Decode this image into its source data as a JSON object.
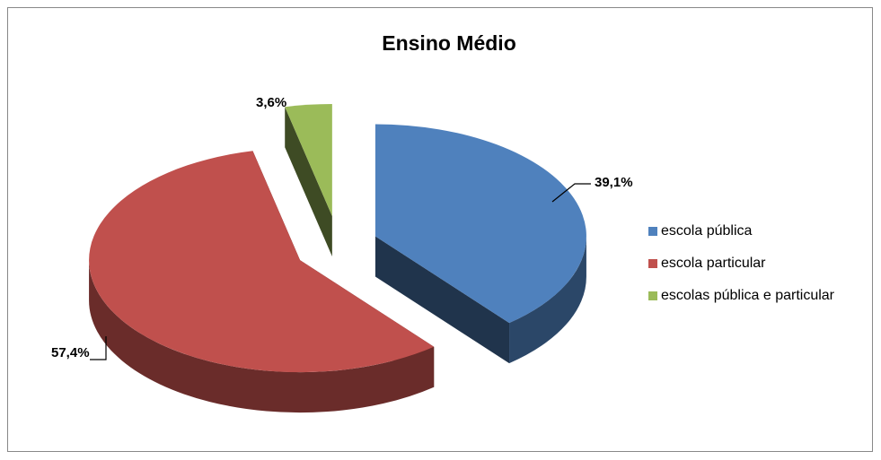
{
  "chart_data": {
    "type": "pie",
    "title": "Ensino Médio",
    "categories": [
      "escola pública",
      "escola particular",
      "escolas pública e particular"
    ],
    "values": [
      39.1,
      57.4,
      3.6
    ],
    "value_labels": [
      "39,1%",
      "57,4%",
      "3,6%"
    ],
    "colors": [
      "#4f81bd",
      "#c0504d",
      "#9bbb59"
    ],
    "legend": "right"
  }
}
